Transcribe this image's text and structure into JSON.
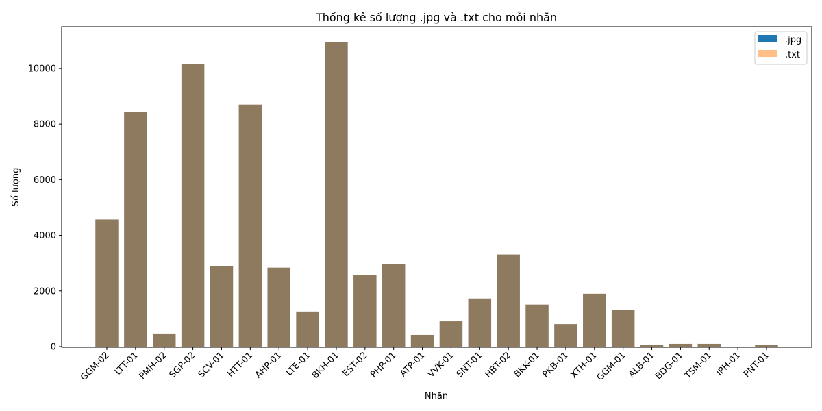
{
  "chart_data": {
    "type": "bar",
    "title": "Thống kê số lượng .jpg và .txt cho mỗi nhãn",
    "xlabel": "Nhãn",
    "ylabel": "Số lượng",
    "ylim": [
      0,
      11500
    ],
    "yticks": [
      "0",
      "2000",
      "4000",
      "6000",
      "8000",
      "10000"
    ],
    "categories": [
      "GGM-02",
      "LTT-01",
      "PMH-02",
      "SGP-02",
      "SCV-01",
      "HTT-01",
      "AHP-01",
      "LTE-01",
      "BKH-01",
      "EST-02",
      "PHP-01",
      "ATP-01",
      "VVK-01",
      "SNT-01",
      "HBT-02",
      "BKK-01",
      "PKB-01",
      "XTH-01",
      "GGM-01",
      "ALB-01",
      "BDG-01",
      "TSM-01",
      "IPH-01",
      "PNT-01"
    ],
    "series": [
      {
        "name": ".jpg",
        "color": "#1f77b4",
        "opacity": 1.0,
        "values": [
          4570,
          8430,
          470,
          10150,
          2890,
          8700,
          2840,
          1260,
          10940,
          2570,
          2960,
          420,
          910,
          1730,
          3310,
          1510,
          810,
          1900,
          1310,
          50,
          100,
          100,
          0,
          50
        ]
      },
      {
        "name": ".txt",
        "color": "#ff7f0e",
        "opacity": 0.5,
        "values": [
          4570,
          8430,
          470,
          10150,
          2890,
          8700,
          2840,
          1260,
          10940,
          2570,
          2960,
          420,
          910,
          1730,
          3310,
          1510,
          810,
          1900,
          1310,
          50,
          100,
          100,
          0,
          50
        ]
      }
    ],
    "overlap_color": "#8e7b5f",
    "legend_position": "top-right",
    "grid": false
  }
}
